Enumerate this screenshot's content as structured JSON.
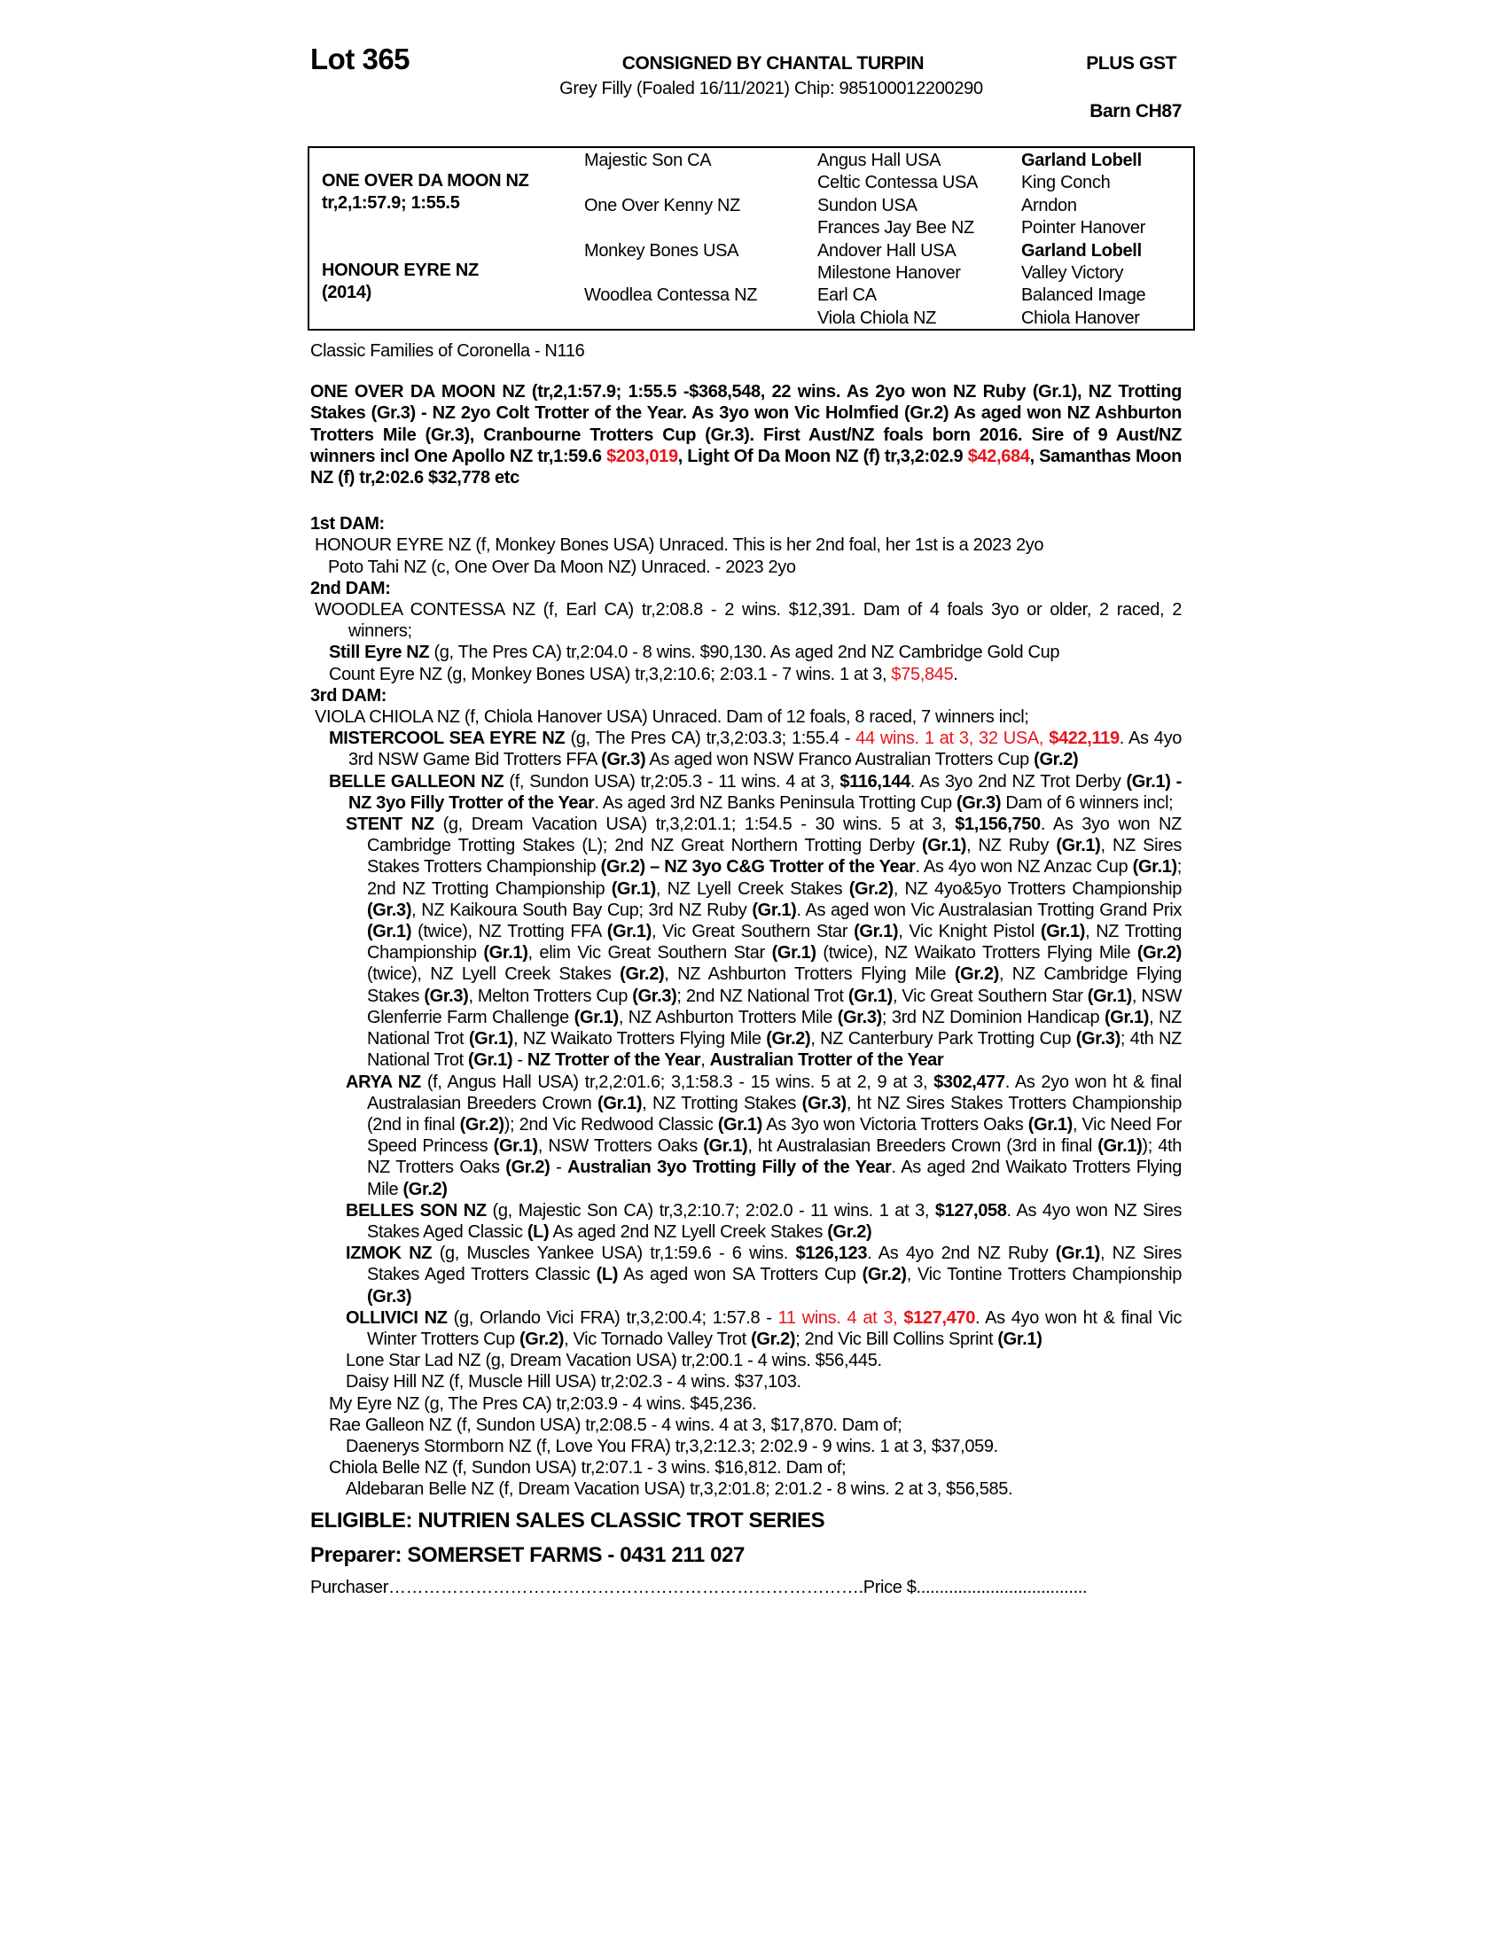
{
  "header": {
    "lot": "Lot 365",
    "consigned": "CONSIGNED BY CHANTAL TURPIN",
    "description": "Grey Filly (Foaled 16/11/2021) Chip: 985100012200290",
    "gst": "PLUS GST",
    "barn": "Barn CH87"
  },
  "pedigree": {
    "sire": {
      "name": "ONE OVER DA MOON NZ",
      "record": "tr,2,1:57.9; 1:55.5"
    },
    "dam": {
      "name": "HONOUR EYRE NZ",
      "year": "(2014)"
    },
    "gen2": [
      "Majestic Son CA",
      "One Over Kenny NZ",
      "Monkey Bones USA",
      "Woodlea Contessa NZ"
    ],
    "gen3": [
      "Angus Hall USA",
      "Celtic Contessa USA",
      "Sundon USA",
      "Frances Jay Bee NZ",
      "Andover Hall USA",
      "Milestone Hanover",
      "Earl CA",
      "Viola Chiola NZ"
    ],
    "gen4": [
      "Garland Lobell",
      "King Conch",
      "Arndon",
      "Pointer Hanover",
      "Garland Lobell",
      "Valley Victory",
      "Balanced Image",
      "Chiola Hanover"
    ],
    "gen4_bold": [
      true,
      false,
      false,
      false,
      true,
      false,
      false,
      false
    ]
  },
  "body": {
    "family": "Classic Families of Coronella - N116",
    "sire_para": [
      [
        "ONE OVER DA MOON NZ (tr,2,1:57.9; 1:55.5 -$368,548, 22 wins. As 2yo won NZ Ruby (Gr.1), NZ Trotting Stakes (Gr.3) - NZ 2yo Colt Trotter of the Year. As 3yo won Vic Holmfied (Gr.2) As aged won NZ Ashburton Trotters Mile (Gr.3), Cranbourne Trotters Cup (Gr.3). First Aust/NZ foals born 2016. Sire of 9 Aust/NZ winners incl One Apollo NZ tr,1:59.6 ",
        "b"
      ],
      [
        "$203,019",
        "rb"
      ],
      [
        ", Light Of Da Moon NZ (f) tr,3,2:02.9 ",
        "b"
      ],
      [
        "$42,684",
        "rb"
      ],
      [
        ", Samanthas Moon NZ (f) tr,2:02.6 $32,778 etc",
        "b"
      ]
    ],
    "paras": [
      {
        "kind": "hd",
        "segs": [
          [
            "1st DAM:",
            ""
          ]
        ]
      },
      {
        "kind": "l0",
        "segs": [
          [
            "HONOUR EYRE NZ (f, Monkey Bones USA) Unraced. This is her 2nd foal, her 1st is a 2023 2yo",
            ""
          ]
        ]
      },
      {
        "kind": "l1x",
        "segs": [
          [
            "Poto Tahi NZ (c, One Over Da Moon NZ) Unraced. - 2023 2yo",
            ""
          ]
        ]
      },
      {
        "kind": "hd",
        "segs": [
          [
            "2nd DAM:",
            ""
          ]
        ]
      },
      {
        "kind": "l0",
        "segs": [
          [
            "WOODLEA CONTESSA NZ (f, Earl CA) tr,2:08.8 - 2 wins. $12,391. Dam of 4 foals 3yo or older, 2 raced, 2 winners;",
            ""
          ]
        ]
      },
      {
        "kind": "l1",
        "segs": [
          [
            "Still Eyre NZ",
            "b"
          ],
          [
            " (g, The Pres CA) tr,2:04.0 - 8 wins. $90,130. As aged 2nd NZ Cambridge Gold Cup",
            ""
          ]
        ]
      },
      {
        "kind": "l1",
        "segs": [
          [
            "Count Eyre NZ (g, Monkey Bones USA) tr,3,2:10.6; 2:03.1 - 7 wins. 1 at 3, ",
            ""
          ],
          [
            "$75,845",
            "r"
          ],
          [
            ".",
            ""
          ]
        ]
      },
      {
        "kind": "hd",
        "segs": [
          [
            "3rd DAM:",
            ""
          ]
        ]
      },
      {
        "kind": "l0",
        "segs": [
          [
            "VIOLA CHIOLA NZ (f, Chiola Hanover USA) Unraced. Dam of 12 foals, 8 raced, 7 winners incl;",
            ""
          ]
        ]
      },
      {
        "kind": "l1",
        "segs": [
          [
            "MISTERCOOL SEA EYRE NZ",
            "b"
          ],
          [
            " (g, The Pres CA) tr,3,2:03.3; 1:55.4 - ",
            ""
          ],
          [
            "44 wins. 1 at 3, 32 USA, ",
            "r"
          ],
          [
            "$422,119",
            "rb"
          ],
          [
            ". As 4yo 3rd NSW Game Bid Trotters FFA ",
            ""
          ],
          [
            "(Gr.3)",
            "b"
          ],
          [
            " As aged won NSW Franco Australian Trotters Cup ",
            ""
          ],
          [
            "(Gr.2)",
            "b"
          ]
        ]
      },
      {
        "kind": "l1",
        "segs": [
          [
            "BELLE GALLEON NZ",
            "b"
          ],
          [
            " (f, Sundon USA) tr,2:05.3 - 11 wins. 4 at 3, ",
            ""
          ],
          [
            "$116,144",
            "b"
          ],
          [
            ". As 3yo 2nd NZ Trot Derby ",
            ""
          ],
          [
            "(Gr.1) - NZ 3yo Filly Trotter of the Year",
            "b"
          ],
          [
            ". As aged 3rd NZ Banks Peninsula Trotting Cup ",
            ""
          ],
          [
            "(Gr.3)",
            "b"
          ],
          [
            " Dam of 6 winners incl;",
            ""
          ]
        ]
      },
      {
        "kind": "l2",
        "segs": [
          [
            "STENT NZ",
            "b"
          ],
          [
            " (g, Dream Vacation USA) tr,3,2:01.1; 1:54.5 - 30 wins. 5 at 3, ",
            ""
          ],
          [
            "$1,156,750",
            "b"
          ],
          [
            ". As 3yo won NZ Cambridge Trotting Stakes (L); 2nd NZ Great Northern Trotting Derby ",
            ""
          ],
          [
            "(Gr.1)",
            "b"
          ],
          [
            ", NZ Ruby ",
            ""
          ],
          [
            "(Gr.1)",
            "b"
          ],
          [
            ", NZ Sires Stakes Trotters Championship ",
            ""
          ],
          [
            "(Gr.2) – NZ 3yo C&G Trotter of the Year",
            "b"
          ],
          [
            ". As 4yo won NZ Anzac Cup ",
            ""
          ],
          [
            "(Gr.1)",
            "b"
          ],
          [
            "; 2nd NZ Trotting Championship ",
            ""
          ],
          [
            "(Gr.1)",
            "b"
          ],
          [
            ", NZ Lyell Creek Stakes ",
            ""
          ],
          [
            "(Gr.2)",
            "b"
          ],
          [
            ", NZ 4yo&5yo Trotters Championship ",
            ""
          ],
          [
            "(Gr.3)",
            "b"
          ],
          [
            ", NZ Kaikoura South Bay Cup; 3rd NZ Ruby ",
            ""
          ],
          [
            "(Gr.1)",
            "b"
          ],
          [
            ". As aged won Vic Australasian Trotting Grand Prix ",
            ""
          ],
          [
            "(Gr.1)",
            "b"
          ],
          [
            " (twice), NZ Trotting FFA ",
            ""
          ],
          [
            "(Gr.1)",
            "b"
          ],
          [
            ", Vic Great Southern Star ",
            ""
          ],
          [
            "(Gr.1)",
            "b"
          ],
          [
            ", Vic Knight Pistol ",
            ""
          ],
          [
            "(Gr.1)",
            "b"
          ],
          [
            ", NZ Trotting Championship ",
            ""
          ],
          [
            "(Gr.1)",
            "b"
          ],
          [
            ", elim Vic Great Southern Star ",
            ""
          ],
          [
            "(Gr.1)",
            "b"
          ],
          [
            " (twice), NZ Waikato Trotters Flying Mile ",
            ""
          ],
          [
            "(Gr.2)",
            "b"
          ],
          [
            " (twice), NZ Lyell Creek Stakes ",
            ""
          ],
          [
            "(Gr.2)",
            "b"
          ],
          [
            ", NZ Ashburton Trotters Flying Mile ",
            ""
          ],
          [
            "(Gr.2)",
            "b"
          ],
          [
            ", NZ Cambridge Flying Stakes ",
            ""
          ],
          [
            "(Gr.3)",
            "b"
          ],
          [
            ", Melton Trotters Cup ",
            ""
          ],
          [
            "(Gr.3)",
            "b"
          ],
          [
            "; 2nd NZ National Trot ",
            ""
          ],
          [
            "(Gr.1)",
            "b"
          ],
          [
            ", Vic Great Southern Star ",
            ""
          ],
          [
            "(Gr.1)",
            "b"
          ],
          [
            ", NSW Glenferrie Farm Challenge ",
            ""
          ],
          [
            "(Gr.1)",
            "b"
          ],
          [
            ", NZ Ashburton Trotters Mile ",
            ""
          ],
          [
            "(Gr.3)",
            "b"
          ],
          [
            "; 3rd NZ Dominion Handicap ",
            ""
          ],
          [
            "(Gr.1)",
            "b"
          ],
          [
            ", NZ National Trot ",
            ""
          ],
          [
            "(Gr.1)",
            "b"
          ],
          [
            ", NZ Waikato Trotters Flying Mile ",
            ""
          ],
          [
            "(Gr.2)",
            "b"
          ],
          [
            ", NZ Canterbury Park Trotting Cup ",
            ""
          ],
          [
            "(Gr.3)",
            "b"
          ],
          [
            "; 4th NZ National Trot ",
            ""
          ],
          [
            "(Gr.1)",
            "b"
          ],
          [
            " - ",
            ""
          ],
          [
            "NZ Trotter of the Year",
            "b"
          ],
          [
            ", ",
            ""
          ],
          [
            "Australian Trotter of the Year",
            "b"
          ]
        ]
      },
      {
        "kind": "l2",
        "segs": [
          [
            "ARYA NZ",
            "b"
          ],
          [
            " (f, Angus Hall USA) tr,2,2:01.6; 3,1:58.3 - 15 wins. 5 at 2, 9 at 3, ",
            ""
          ],
          [
            "$302,477",
            "b"
          ],
          [
            ". As 2yo won ht & final Australasian Breeders Crown ",
            ""
          ],
          [
            "(Gr.1)",
            "b"
          ],
          [
            ", NZ Trotting Stakes ",
            ""
          ],
          [
            "(Gr.3)",
            "b"
          ],
          [
            ", ht NZ Sires Stakes Trotters Championship (2nd in final ",
            ""
          ],
          [
            "(Gr.2)",
            "b"
          ],
          [
            "); 2nd Vic Redwood Classic ",
            ""
          ],
          [
            "(Gr.1)",
            "b"
          ],
          [
            " As 3yo won Victoria Trotters Oaks ",
            ""
          ],
          [
            "(Gr.1)",
            "b"
          ],
          [
            ", Vic Need For Speed Princess ",
            ""
          ],
          [
            "(Gr.1)",
            "b"
          ],
          [
            ", NSW Trotters Oaks ",
            ""
          ],
          [
            "(Gr.1)",
            "b"
          ],
          [
            ", ht Australasian Breeders Crown (3rd in final ",
            ""
          ],
          [
            "(Gr.1)",
            "b"
          ],
          [
            "); 4th NZ Trotters Oaks ",
            ""
          ],
          [
            "(Gr.2)",
            "b"
          ],
          [
            " - ",
            ""
          ],
          [
            "Australian 3yo Trotting Filly of the Year",
            "b"
          ],
          [
            ". As aged 2nd Waikato Trotters Flying Mile ",
            ""
          ],
          [
            "(Gr.2)",
            "b"
          ]
        ]
      },
      {
        "kind": "l2",
        "segs": [
          [
            "BELLES SON NZ",
            "b"
          ],
          [
            " (g, Majestic Son CA) tr,3,2:10.7; 2:02.0 - 11 wins. 1 at 3, ",
            ""
          ],
          [
            "$127,058",
            "b"
          ],
          [
            ". As 4yo won NZ Sires Stakes Aged Classic ",
            ""
          ],
          [
            "(L)",
            "b"
          ],
          [
            " As aged 2nd NZ Lyell Creek Stakes ",
            ""
          ],
          [
            "(Gr.2)",
            "b"
          ]
        ]
      },
      {
        "kind": "l2",
        "segs": [
          [
            "IZMOK NZ",
            "b"
          ],
          [
            " (g, Muscles Yankee USA) tr,1:59.6 - 6 wins. ",
            ""
          ],
          [
            "$126,123",
            "b"
          ],
          [
            ". As 4yo 2nd NZ Ruby ",
            ""
          ],
          [
            "(Gr.1)",
            "b"
          ],
          [
            ", NZ Sires Stakes Aged Trotters Classic ",
            ""
          ],
          [
            "(L)",
            "b"
          ],
          [
            " As aged won SA Trotters Cup ",
            ""
          ],
          [
            "(Gr.2)",
            "b"
          ],
          [
            ", Vic Tontine Trotters Championship ",
            ""
          ],
          [
            "(Gr.3)",
            "b"
          ]
        ]
      },
      {
        "kind": "l2",
        "segs": [
          [
            "OLLIVICI NZ",
            "b"
          ],
          [
            " (g, Orlando Vici FRA) tr,3,2:00.4; 1:57.8 - ",
            ""
          ],
          [
            "11 wins. 4 at 3, ",
            "r"
          ],
          [
            "$127,470",
            "rb"
          ],
          [
            ". As 4yo won ht & final Vic Winter Trotters Cup ",
            ""
          ],
          [
            "(Gr.2)",
            "b"
          ],
          [
            ", Vic Tornado Valley Trot ",
            ""
          ],
          [
            "(Gr.2)",
            "b"
          ],
          [
            "; 2nd Vic Bill Collins Sprint ",
            ""
          ],
          [
            "(Gr.1)",
            "b"
          ]
        ]
      },
      {
        "kind": "l2",
        "segs": [
          [
            "Lone Star Lad NZ (g, Dream Vacation USA) tr,2:00.1 - 4 wins. $56,445.",
            ""
          ]
        ]
      },
      {
        "kind": "l2",
        "segs": [
          [
            "Daisy Hill NZ (f, Muscle Hill USA) tr,2:02.3 - 4 wins. $37,103.",
            ""
          ]
        ]
      },
      {
        "kind": "l1",
        "segs": [
          [
            "My Eyre NZ (g, The Pres CA) tr,2:03.9 - 4 wins. $45,236.",
            ""
          ]
        ]
      },
      {
        "kind": "l1",
        "segs": [
          [
            "Rae Galleon NZ (f, Sundon USA) tr,2:08.5 - 4 wins. 4 at 3, $17,870. Dam of;",
            ""
          ]
        ]
      },
      {
        "kind": "l2",
        "segs": [
          [
            "Daenerys Stormborn NZ (f, Love You FRA) tr,3,2:12.3; 2:02.9 - 9 wins. 1 at 3, $37,059.",
            ""
          ]
        ]
      },
      {
        "kind": "l1",
        "segs": [
          [
            "Chiola Belle NZ (f, Sundon USA) tr,2:07.1 - 3 wins. $16,812. Dam of;",
            ""
          ]
        ]
      },
      {
        "kind": "l2",
        "segs": [
          [
            "Aldebaran Belle NZ (f, Dream Vacation USA) tr,3,2:01.8; 2:01.2 - 8 wins. 2 at 3, $56,585.",
            ""
          ]
        ]
      }
    ],
    "eligible": "ELIGIBLE: NUTRIEN SALES CLASSIC TROT SERIES",
    "preparer": "Preparer: SOMERSET FARMS - 0431 211 027",
    "purchaser_line": "Purchaser……………………………………………………………………….Price $.....................................",
    "red_color": "#e8141b"
  }
}
